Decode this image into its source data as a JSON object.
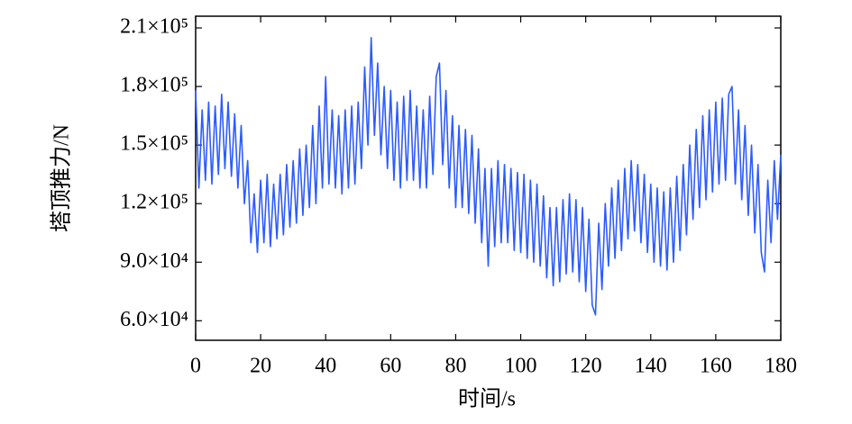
{
  "chart_data": {
    "type": "line",
    "xlabel": "时间/s",
    "ylabel": "塔顶推力/N",
    "xlim": [
      0,
      180
    ],
    "xticks": [
      0,
      20,
      40,
      60,
      80,
      100,
      120,
      140,
      160,
      180
    ],
    "ylim": [
      50000,
      216000
    ],
    "yticks": [
      {
        "value": 60000,
        "label": "6.0×10⁴"
      },
      {
        "value": 90000,
        "label": "9.0×10⁴"
      },
      {
        "value": 120000,
        "label": "1.2×10⁵"
      },
      {
        "value": 150000,
        "label": "1.5×10⁵"
      },
      {
        "value": 180000,
        "label": "1.8×10⁵"
      },
      {
        "value": 210000,
        "label": "2.1×10⁵"
      }
    ],
    "x": [
      0,
      1,
      2,
      3,
      4,
      5,
      6,
      7,
      8,
      9,
      10,
      11,
      12,
      13,
      14,
      15,
      16,
      17,
      18,
      19,
      20,
      21,
      22,
      23,
      24,
      25,
      26,
      27,
      28,
      29,
      30,
      31,
      32,
      33,
      34,
      35,
      36,
      37,
      38,
      39,
      40,
      41,
      42,
      43,
      44,
      45,
      46,
      47,
      48,
      49,
      50,
      51,
      52,
      53,
      54,
      55,
      56,
      57,
      58,
      59,
      60,
      61,
      62,
      63,
      64,
      65,
      66,
      67,
      68,
      69,
      70,
      71,
      72,
      73,
      74,
      75,
      76,
      77,
      78,
      79,
      80,
      81,
      82,
      83,
      84,
      85,
      86,
      87,
      88,
      89,
      90,
      91,
      92,
      93,
      94,
      95,
      96,
      97,
      98,
      99,
      100,
      101,
      102,
      103,
      104,
      105,
      106,
      107,
      108,
      109,
      110,
      111,
      112,
      113,
      114,
      115,
      116,
      117,
      118,
      119,
      120,
      121,
      122,
      123,
      124,
      125,
      126,
      127,
      128,
      129,
      130,
      131,
      132,
      133,
      134,
      135,
      136,
      137,
      138,
      139,
      140,
      141,
      142,
      143,
      144,
      145,
      146,
      147,
      148,
      149,
      150,
      151,
      152,
      153,
      154,
      155,
      156,
      157,
      158,
      159,
      160,
      161,
      162,
      163,
      164,
      165,
      166,
      167,
      168,
      169,
      170,
      171,
      172,
      173,
      174,
      175,
      176,
      177,
      178,
      179,
      180
    ],
    "series": [
      {
        "color": "#2b5cff",
        "values": [
          178000,
          128000,
          168000,
          132000,
          172000,
          130000,
          170000,
          135000,
          176000,
          138000,
          172000,
          134000,
          166000,
          128000,
          160000,
          120000,
          142000,
          100000,
          125000,
          95000,
          132000,
          100000,
          135000,
          98000,
          130000,
          102000,
          135000,
          104000,
          140000,
          108000,
          142000,
          110000,
          148000,
          114000,
          150000,
          118000,
          160000,
          120000,
          170000,
          128000,
          185000,
          130000,
          168000,
          128000,
          165000,
          125000,
          168000,
          128000,
          170000,
          130000,
          172000,
          138000,
          190000,
          150000,
          205000,
          155000,
          192000,
          145000,
          180000,
          138000,
          178000,
          132000,
          172000,
          128000,
          175000,
          132000,
          178000,
          132000,
          170000,
          128000,
          168000,
          128000,
          175000,
          135000,
          185000,
          192000,
          140000,
          178000,
          128000,
          165000,
          118000,
          160000,
          118000,
          158000,
          115000,
          155000,
          110000,
          148000,
          100000,
          138000,
          88000,
          138000,
          98000,
          142000,
          100000,
          140000,
          100000,
          138000,
          96000,
          136000,
          95000,
          135000,
          92000,
          132000,
          90000,
          130000,
          88000,
          124000,
          82000,
          118000,
          78000,
          118000,
          80000,
          122000,
          84000,
          125000,
          85000,
          122000,
          80000,
          118000,
          75000,
          112000,
          68000,
          63000,
          110000,
          76000,
          120000,
          88000,
          128000,
          92000,
          132000,
          96000,
          138000,
          102000,
          142000,
          106000,
          140000,
          100000,
          135000,
          95000,
          130000,
          90000,
          128000,
          88000,
          126000,
          86000,
          128000,
          90000,
          134000,
          96000,
          140000,
          104000,
          150000,
          112000,
          158000,
          118000,
          165000,
          122000,
          168000,
          126000,
          172000,
          130000,
          174000,
          132000,
          176000,
          180000,
          130000,
          168000,
          122000,
          160000,
          114000,
          150000,
          105000,
          140000,
          95000,
          85000,
          132000,
          100000,
          142000,
          112000,
          145000
        ]
      }
    ]
  }
}
